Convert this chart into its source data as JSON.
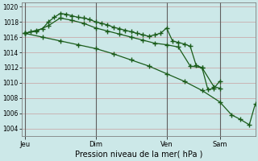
{
  "bg_color": "#cce8e8",
  "grid_color": "#c8a0a0",
  "line_color": "#1a5c1a",
  "title": "Pression niveau de la mer( hPa )",
  "xlabel_ticks": [
    "Jeu",
    "Dim",
    "Ven",
    "Sam"
  ],
  "xlabel_tick_pos": [
    0,
    24,
    48,
    66
  ],
  "ylim": [
    1003.0,
    1020.5
  ],
  "yticks": [
    1004,
    1006,
    1008,
    1010,
    1012,
    1014,
    1016,
    1018,
    1020
  ],
  "xlim": [
    -1,
    78
  ],
  "vlines": [
    0,
    24,
    48,
    66
  ],
  "series": [
    {
      "x": [
        0,
        2,
        4,
        6,
        8,
        10,
        12,
        14,
        16,
        18,
        20,
        22,
        24,
        26,
        28,
        30,
        32,
        34,
        36,
        38,
        40,
        42,
        44,
        46,
        48,
        50,
        52,
        54,
        56,
        58,
        60,
        62,
        64,
        66
      ],
      "y": [
        1016.5,
        1016.7,
        1016.9,
        1017.1,
        1018.0,
        1018.6,
        1019.1,
        1019.0,
        1018.8,
        1018.6,
        1018.5,
        1018.3,
        1018.0,
        1017.8,
        1017.6,
        1017.3,
        1017.1,
        1016.9,
        1016.7,
        1016.5,
        1016.3,
        1016.1,
        1016.3,
        1016.5,
        1017.2,
        1015.5,
        1015.3,
        1015.1,
        1014.8,
        1012.3,
        1012.0,
        1009.1,
        1009.3,
        1010.2
      ],
      "marker": "+",
      "markersize": 4,
      "linewidth": 0.9,
      "markevery": 1
    },
    {
      "x": [
        0,
        4,
        8,
        12,
        16,
        20,
        24,
        28,
        32,
        36,
        40,
        44,
        48,
        52,
        56,
        60,
        64,
        66
      ],
      "y": [
        1016.5,
        1016.8,
        1017.5,
        1018.5,
        1018.2,
        1017.8,
        1017.2,
        1016.8,
        1016.4,
        1016.0,
        1015.6,
        1015.2,
        1015.0,
        1014.7,
        1012.2,
        1012.0,
        1009.5,
        1009.3
      ],
      "marker": "+",
      "markersize": 4,
      "linewidth": 0.9,
      "markevery": 1
    },
    {
      "x": [
        0,
        6,
        12,
        18,
        24,
        30,
        36,
        42,
        48,
        54,
        60,
        66,
        70,
        73,
        76,
        78
      ],
      "y": [
        1016.5,
        1016.0,
        1015.5,
        1015.0,
        1014.5,
        1013.8,
        1013.0,
        1012.2,
        1011.2,
        1010.2,
        1009.0,
        1007.5,
        1005.8,
        1005.2,
        1004.5,
        1007.2
      ],
      "marker": "+",
      "markersize": 4,
      "linewidth": 0.9,
      "markevery": 1
    }
  ]
}
